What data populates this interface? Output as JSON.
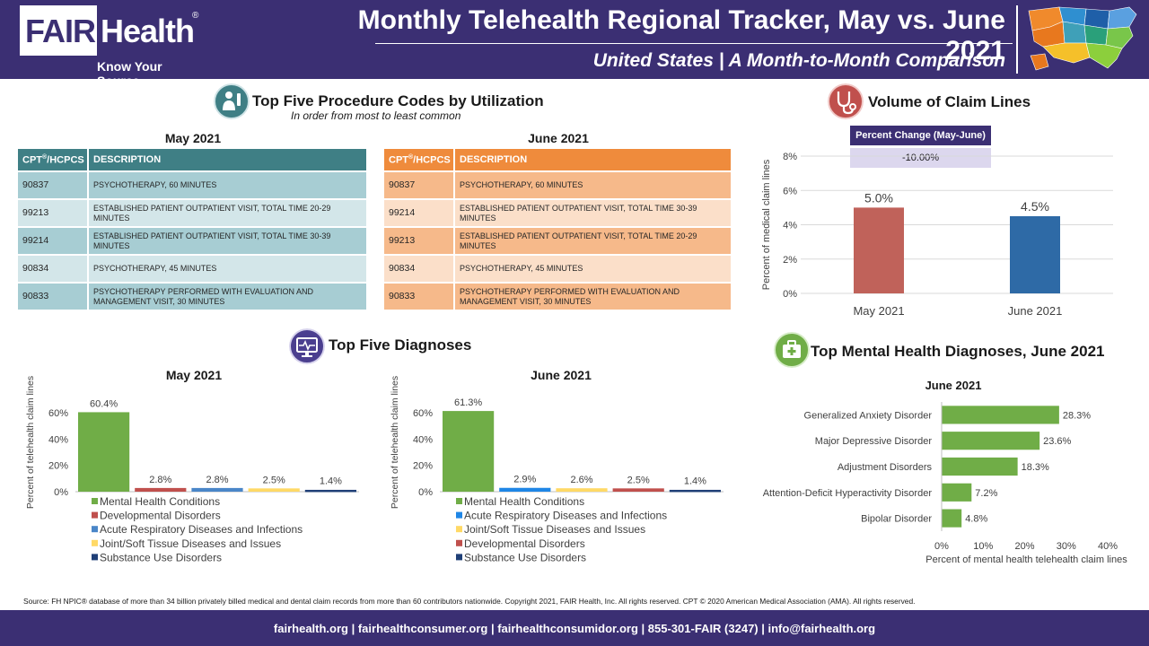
{
  "header": {
    "logo_fair": "FAIR",
    "logo_health": "Health",
    "logo_reg": "®",
    "logo_tagline": "Know Your Source",
    "title": "Monthly Telehealth Regional Tracker, May vs. June 2021",
    "subtitle": "United States | A Month-to-Month Comparison",
    "map_icon": "us-map-icon"
  },
  "procedures": {
    "title": "Top Five Procedure Codes by Utilization",
    "subtitle": "In order from most to least common",
    "icon": "doctor-icon",
    "col_code": "CPT",
    "col_code_sup": "®",
    "col_code_rest": "/HCPCS",
    "col_desc": "DESCRIPTION",
    "may": {
      "title": "May 2021",
      "rows": [
        {
          "code": "90837",
          "desc": "PSYCHOTHERAPY, 60 MINUTES"
        },
        {
          "code": "99213",
          "desc": "ESTABLISHED PATIENT OUTPATIENT VISIT, TOTAL TIME 20-29 MINUTES"
        },
        {
          "code": "99214",
          "desc": "ESTABLISHED PATIENT OUTPATIENT VISIT, TOTAL TIME 30-39 MINUTES"
        },
        {
          "code": "90834",
          "desc": "PSYCHOTHERAPY, 45 MINUTES"
        },
        {
          "code": "90833",
          "desc": "PSYCHOTHERAPY PERFORMED WITH EVALUATION AND MANAGEMENT VISIT, 30 MINUTES"
        }
      ]
    },
    "june": {
      "title": "June 2021",
      "rows": [
        {
          "code": "90837",
          "desc": "PSYCHOTHERAPY, 60 MINUTES"
        },
        {
          "code": "99214",
          "desc": "ESTABLISHED PATIENT OUTPATIENT VISIT, TOTAL TIME 30-39 MINUTES"
        },
        {
          "code": "99213",
          "desc": "ESTABLISHED PATIENT OUTPATIENT VISIT, TOTAL TIME 20-29 MINUTES"
        },
        {
          "code": "90834",
          "desc": "PSYCHOTHERAPY, 45 MINUTES"
        },
        {
          "code": "90833",
          "desc": "PSYCHOTHERAPY PERFORMED WITH EVALUATION AND MANAGEMENT VISIT, 30 MINUTES"
        }
      ]
    }
  },
  "volume": {
    "title": "Volume of Claim Lines",
    "icon": "stethoscope-icon",
    "pct_change_label": "Percent Change (May-June)",
    "pct_change_value": "-10.00%"
  },
  "diagnoses": {
    "title": "Top Five Diagnoses",
    "icon": "monitor-heartbeat-icon"
  },
  "mental": {
    "title": "Top Mental Health Diagnoses, June 2021",
    "icon": "first-aid-kit-icon"
  },
  "colors": {
    "header_bg": "#3b2f73",
    "green": "#70ad47",
    "red": "#c0504d",
    "blue_bar": "#2e6aa6",
    "sky": "#1f86e6",
    "yellow": "#ffd966",
    "navy": "#1f3f77",
    "may_red": "#c0625a",
    "teal_header": "#3f7f85",
    "orange_header": "#ef8b3c"
  },
  "chart_data": [
    {
      "id": "volume",
      "type": "bar",
      "categories": [
        "May 2021",
        "June 2021"
      ],
      "values": [
        5.0,
        4.5
      ],
      "value_labels": [
        "5.0%",
        "4.5%"
      ],
      "ylabel": "Percent of medical claim lines",
      "ylim": [
        0,
        8
      ],
      "yticks": [
        "0%",
        "2%",
        "4%",
        "6%",
        "8%"
      ],
      "bar_colors": [
        "#c0625a",
        "#2e6aa6"
      ],
      "grid": true
    },
    {
      "id": "diag_may",
      "type": "bar",
      "title": "May 2021",
      "ylabel": "Percent of telehealth claim lines",
      "ylim": [
        0,
        60
      ],
      "yticks": [
        "0%",
        "20%",
        "40%",
        "60%"
      ],
      "series": [
        {
          "name": "Mental Health Conditions",
          "value": 60.4,
          "label": "60.4%",
          "color": "#70ad47"
        },
        {
          "name": "Developmental Disorders",
          "value": 2.8,
          "label": "2.8%",
          "color": "#c0504d"
        },
        {
          "name": "Acute Respiratory Diseases and Infections",
          "value": 2.8,
          "label": "2.8%",
          "color": "#4a86c8"
        },
        {
          "name": "Joint/Soft Tissue Diseases and Issues",
          "value": 2.5,
          "label": "2.5%",
          "color": "#ffd966"
        },
        {
          "name": "Substance Use Disorders",
          "value": 1.4,
          "label": "1.4%",
          "color": "#1f3f77"
        }
      ],
      "legend": "bottom"
    },
    {
      "id": "diag_june",
      "type": "bar",
      "title": "June 2021",
      "ylabel": "Percent of telehealth claim lines",
      "ylim": [
        0,
        60
      ],
      "yticks": [
        "0%",
        "20%",
        "40%",
        "60%"
      ],
      "series": [
        {
          "name": "Mental Health Conditions",
          "value": 61.3,
          "label": "61.3%",
          "color": "#70ad47"
        },
        {
          "name": "Acute Respiratory Diseases and Infections",
          "value": 2.9,
          "label": "2.9%",
          "color": "#1f86e6"
        },
        {
          "name": "Joint/Soft Tissue Diseases and Issues",
          "value": 2.6,
          "label": "2.6%",
          "color": "#ffd966"
        },
        {
          "name": "Developmental Disorders",
          "value": 2.5,
          "label": "2.5%",
          "color": "#c0504d"
        },
        {
          "name": "Substance Use Disorders",
          "value": 1.4,
          "label": "1.4%",
          "color": "#1f3f77"
        }
      ],
      "legend": "bottom"
    },
    {
      "id": "mental",
      "type": "bar",
      "orientation": "horizontal",
      "title": "June 2021",
      "categories": [
        "Generalized Anxiety Disorder",
        "Major Depressive Disorder",
        "Adjustment Disorders",
        "Attention-Deficit Hyperactivity Disorder",
        "Bipolar Disorder"
      ],
      "values": [
        28.3,
        23.6,
        18.3,
        7.2,
        4.8
      ],
      "value_labels": [
        "28.3%",
        "23.6%",
        "18.3%",
        "7.2%",
        "4.8%"
      ],
      "xlabel": "Percent of mental health telehealth claim lines",
      "xlim": [
        0,
        40
      ],
      "xticks": [
        "0%",
        "10%",
        "20%",
        "30%",
        "40%"
      ],
      "bar_color": "#70ad47"
    }
  ],
  "source": "Source: FH NPIC® database of more than 34 billion privately billed medical and dental claim records from more than 60 contributors nationwide. Copyright 2021, FAIR Health, Inc. All rights reserved. CPT © 2020 American Medical Association (AMA). All rights reserved.",
  "footer": "fairhealth.org  |  fairhealthconsumer.org  |  fairhealthconsumidor.org  |  855-301-FAIR (3247)  |  info@fairhealth.org"
}
